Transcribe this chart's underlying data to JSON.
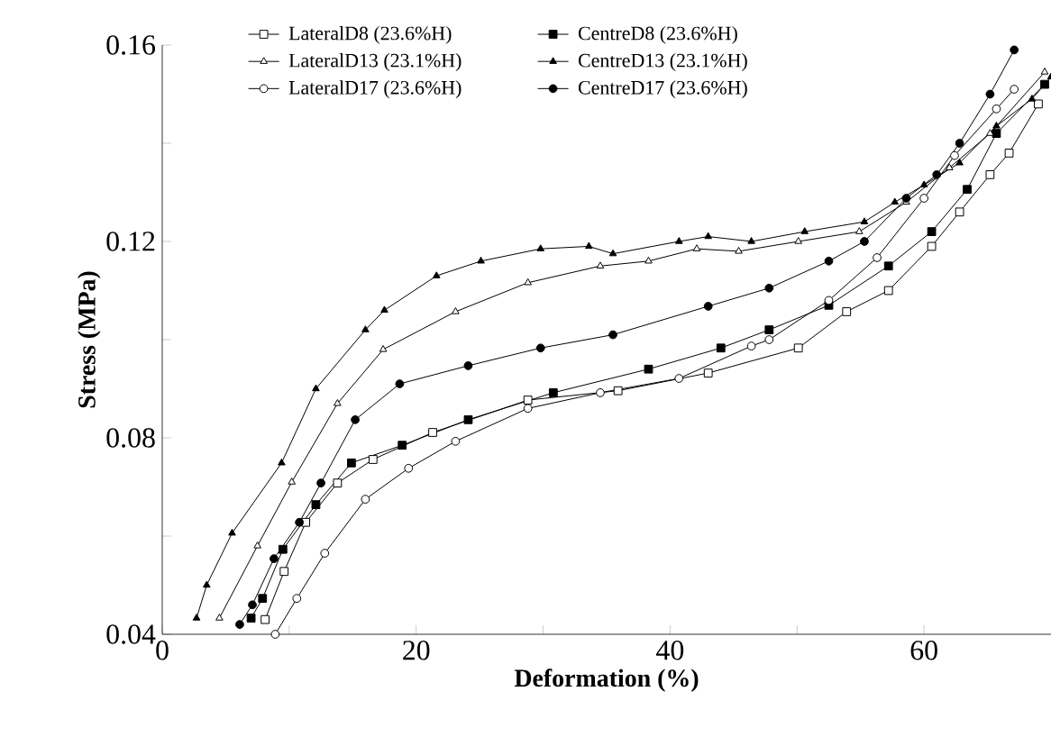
{
  "chart_data": {
    "type": "line",
    "xlabel": "Deformation (%)",
    "ylabel": "Stress (MPa)",
    "xlim": [
      0,
      70
    ],
    "ylim": [
      0.04,
      0.16
    ],
    "xticks": [
      0,
      {
        "value": 10,
        "label": null
      },
      20,
      {
        "value": 30,
        "label": null
      },
      40,
      {
        "value": 50,
        "label": null
      },
      60
    ],
    "yticks": [
      0.04,
      {
        "value": 0.06,
        "label": null
      },
      0.08,
      {
        "value": 0.1,
        "label": null
      },
      0.12,
      {
        "value": 0.14,
        "label": null
      },
      0.16
    ],
    "legend": "top left",
    "grid": false,
    "line_style": "solid",
    "series": [
      {
        "name": "LateralD8 (23.6%H)",
        "color": "#000000",
        "marker": "square",
        "x": [
          8.1,
          9.6,
          11.3,
          13.8,
          16.6,
          21.3,
          28.8,
          35.9,
          43,
          50.1,
          53.9,
          57.2,
          60.6,
          62.8,
          65.2,
          66.7,
          69
        ],
        "values": [
          0.043,
          0.0528,
          0.0628,
          0.0708,
          0.0756,
          0.0811,
          0.0877,
          0.0896,
          0.0932,
          0.0983,
          0.1057,
          0.11,
          0.119,
          0.126,
          0.1336,
          0.138,
          0.148
        ]
      },
      {
        "name": "CentreD8 (23.6%H)",
        "color": "#000000",
        "marker": "square",
        "x": [
          7,
          7.9,
          9.5,
          12.1,
          14.9,
          18.9,
          24.1,
          30.8,
          38.3,
          44,
          47.8,
          52.5,
          57.2,
          60.6,
          63.4,
          65.7,
          69.5
        ],
        "values": [
          0.0433,
          0.0473,
          0.0573,
          0.0664,
          0.0749,
          0.0785,
          0.0837,
          0.0892,
          0.094,
          0.0983,
          0.102,
          0.107,
          0.115,
          0.122,
          0.1306,
          0.142,
          0.152
        ]
      },
      {
        "name": "LateralD13 (23.1%H)",
        "color": "#000000",
        "marker": "triangle",
        "x": [
          4.5,
          7.5,
          10.2,
          13.8,
          17.4,
          23.1,
          28.8,
          34.5,
          38.3,
          42.1,
          45.4,
          50.1,
          54.9,
          58.6,
          62,
          65.2,
          69.5
        ],
        "values": [
          0.0433,
          0.058,
          0.071,
          0.087,
          0.098,
          0.1057,
          0.1116,
          0.115,
          0.116,
          0.1185,
          0.118,
          0.12,
          0.122,
          0.128,
          0.135,
          0.142,
          0.1545
        ]
      },
      {
        "name": "CentreD13 (23.1%H)",
        "color": "#000000",
        "marker": "triangle",
        "x": [
          2.7,
          3.5,
          5.5,
          9.4,
          12.1,
          16,
          17.5,
          21.6,
          25.1,
          29.8,
          33.6,
          35.5,
          40.7,
          43,
          46.4,
          50.6,
          55.3,
          57.7,
          60,
          62.8,
          65.7,
          68.5,
          70
        ],
        "values": [
          0.0433,
          0.05,
          0.0606,
          0.0749,
          0.09,
          0.102,
          0.106,
          0.113,
          0.116,
          0.1185,
          0.119,
          0.1175,
          0.12,
          0.121,
          0.12,
          0.122,
          0.124,
          0.128,
          0.1315,
          0.136,
          0.1435,
          0.149,
          0.1535
        ]
      },
      {
        "name": "LateralD17 (23.6%H)",
        "color": "#000000",
        "marker": "circle",
        "x": [
          8.9,
          10.6,
          12.8,
          16,
          19.4,
          23.1,
          28.8,
          34.5,
          40.7,
          46.4,
          47.8,
          52.5,
          56.3,
          60,
          62.4,
          65.7,
          67.1
        ],
        "values": [
          0.04,
          0.0473,
          0.0565,
          0.0675,
          0.0738,
          0.0793,
          0.086,
          0.0892,
          0.0921,
          0.0987,
          0.1,
          0.108,
          0.1167,
          0.1288,
          0.1375,
          0.147,
          0.151
        ]
      },
      {
        "name": "CentreD17 (23.6%H)",
        "color": "#000000",
        "marker": "circle",
        "x": [
          6.1,
          7.1,
          8.8,
          10.8,
          12.5,
          15.2,
          18.7,
          24.1,
          29.8,
          35.5,
          43,
          47.8,
          52.5,
          55.3,
          58.6,
          61,
          62.8,
          65.2,
          67.1
        ],
        "values": [
          0.042,
          0.046,
          0.0554,
          0.0628,
          0.0708,
          0.0837,
          0.091,
          0.0947,
          0.0983,
          0.101,
          0.1068,
          0.1105,
          0.116,
          0.12,
          0.1288,
          0.1336,
          0.14,
          0.15,
          0.159
        ]
      }
    ]
  }
}
